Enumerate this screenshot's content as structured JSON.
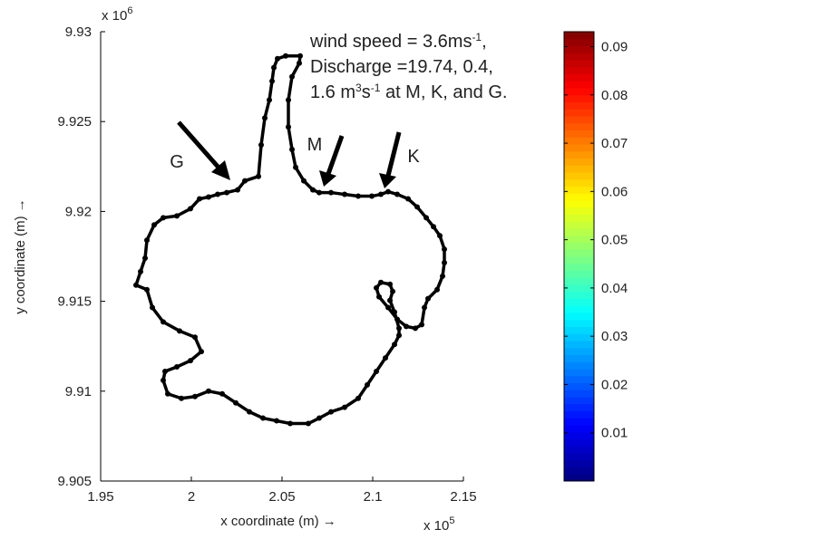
{
  "chart_data": {
    "type": "scatter",
    "x_label": "x coordinate (m)  →",
    "y_label": "y coordinate (m)  →",
    "x_multiplier": {
      "base": "x 10",
      "exponent": "5"
    },
    "y_multiplier": {
      "base": "x 10",
      "exponent": "6"
    },
    "xlim": [
      195000,
      215000
    ],
    "xticks": [
      {
        "value": 195000,
        "label": "1.95"
      },
      {
        "value": 200000,
        "label": "2"
      },
      {
        "value": 205000,
        "label": "2.05"
      },
      {
        "value": 210000,
        "label": "2.1"
      },
      {
        "value": 215000,
        "label": "2.15"
      }
    ],
    "ylim": [
      9905000,
      9930000
    ],
    "yticks": [
      {
        "value": 9905000,
        "label": "9.905"
      },
      {
        "value": 9910000,
        "label": "9.91"
      },
      {
        "value": 9915000,
        "label": "9.915"
      },
      {
        "value": 9920000,
        "label": "9.92"
      },
      {
        "value": 9925000,
        "label": "9.925"
      },
      {
        "value": 9930000,
        "label": "9.93"
      }
    ],
    "annotation_lines": [
      [
        "wind speed = 3.6ms",
        "-1",
        ","
      ],
      [
        "Discharge =19.74, 0.4,"
      ],
      [
        "1.6 m",
        "3",
        "s",
        "-1",
        " at M, K, and G."
      ]
    ],
    "site_labels": [
      "G",
      "M",
      "K"
    ],
    "series": [
      {
        "color": "#000000",
        "x": [
          203700,
          203850,
          204050,
          204300,
          204450,
          204550,
          204750,
          205200,
          206000,
          205950,
          205550,
          205350,
          205350,
          205550,
          205750,
          206200,
          206700,
          207050,
          207700,
          208450,
          209200,
          209950,
          210450,
          210850,
          211350,
          211950,
          212450,
          212950,
          213350,
          213700,
          213950,
          213950,
          213850,
          213550,
          213050,
          212850,
          212700,
          212350,
          211850,
          211350,
          210850,
          210350,
          210200,
          210450,
          210950,
          211100,
          210950,
          211200,
          211450,
          211450,
          211200,
          210700,
          210200,
          209700,
          209200,
          208450,
          207700,
          207050,
          206450,
          205450,
          204700,
          203950,
          203200,
          202450,
          201700,
          200950,
          200200,
          199450,
          198700,
          198450,
          198550,
          199200,
          199950,
          200550,
          200200,
          199350,
          198450,
          197850,
          197550,
          196950,
          197200,
          197450,
          197550,
          197950,
          198450,
          199200,
          199950,
          200450,
          200950,
          201450,
          201950,
          202550,
          202950
        ],
        "y": [
          9921950,
          9923700,
          9925200,
          9926200,
          9927250,
          9928000,
          9928500,
          9928650,
          9928650,
          9928250,
          9927500,
          9926200,
          9924700,
          9923450,
          9922450,
          9921700,
          9921200,
          9921050,
          9921050,
          9920950,
          9920850,
          9920850,
          9920950,
          9921100,
          9920950,
          9920700,
          9920250,
          9919650,
          9919150,
          9918650,
          9917900,
          9917150,
          9916400,
          9915650,
          9915150,
          9914650,
          9913700,
          9913500,
          9913600,
          9914000,
          9914650,
          9915250,
          9915750,
          9916050,
          9915950,
          9915550,
          9915050,
          9914400,
          9913500,
          9913100,
          9912600,
          9911850,
          9911100,
          9910350,
          9909600,
          9909100,
          9908850,
          9908500,
          9908200,
          9908200,
          9908350,
          9908500,
          9908850,
          9909350,
          9909850,
          9910000,
          9909700,
          9909600,
          9909850,
          9910600,
          9911100,
          9911350,
          9911700,
          9912200,
          9913000,
          9913350,
          9913850,
          9914650,
          9915650,
          9915900,
          9916650,
          9917400,
          9918400,
          9919250,
          9919650,
          9919750,
          9920150,
          9920700,
          9920800,
          9920950,
          9921050,
          9921200,
          9921700
        ]
      }
    ],
    "colorbar": {
      "colormap": "jet",
      "clim": [
        0,
        0.0931
      ],
      "ticks": [
        0.01,
        0.02,
        0.03,
        0.04,
        0.05,
        0.06,
        0.07,
        0.08,
        0.09
      ]
    }
  }
}
